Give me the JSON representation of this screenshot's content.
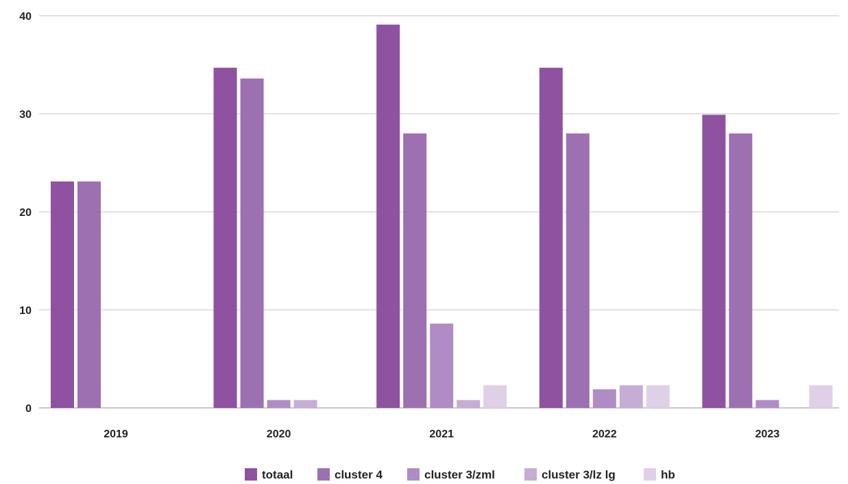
{
  "chart_data": {
    "type": "bar",
    "title": "",
    "xlabel": "",
    "ylabel": "",
    "ylim": [
      0,
      40
    ],
    "yticks": [
      0,
      10,
      20,
      30,
      40
    ],
    "grid": true,
    "legend_placement": "bottom-center",
    "categories": [
      "2019",
      "2020",
      "2021",
      "2022",
      "2023"
    ],
    "series": [
      {
        "name": "totaal",
        "color": "#8e52a1",
        "values": [
          23.1,
          34.7,
          39.1,
          34.7,
          29.9
        ]
      },
      {
        "name": "cluster 4",
        "color": "#9d70b1",
        "values": [
          23.1,
          33.6,
          28.0,
          28.0,
          28.0
        ]
      },
      {
        "name": "cluster 3/zml",
        "color": "#b08cc4",
        "values": [
          0,
          0.8,
          8.6,
          1.9,
          0.8
        ]
      },
      {
        "name": "cluster 3/lz lg",
        "color": "#c6add5",
        "values": [
          0,
          0.8,
          0.8,
          2.3,
          0
        ]
      },
      {
        "name": "hb",
        "color": "#dfd0e8",
        "values": [
          0,
          0,
          2.3,
          2.3,
          2.3
        ]
      }
    ]
  }
}
